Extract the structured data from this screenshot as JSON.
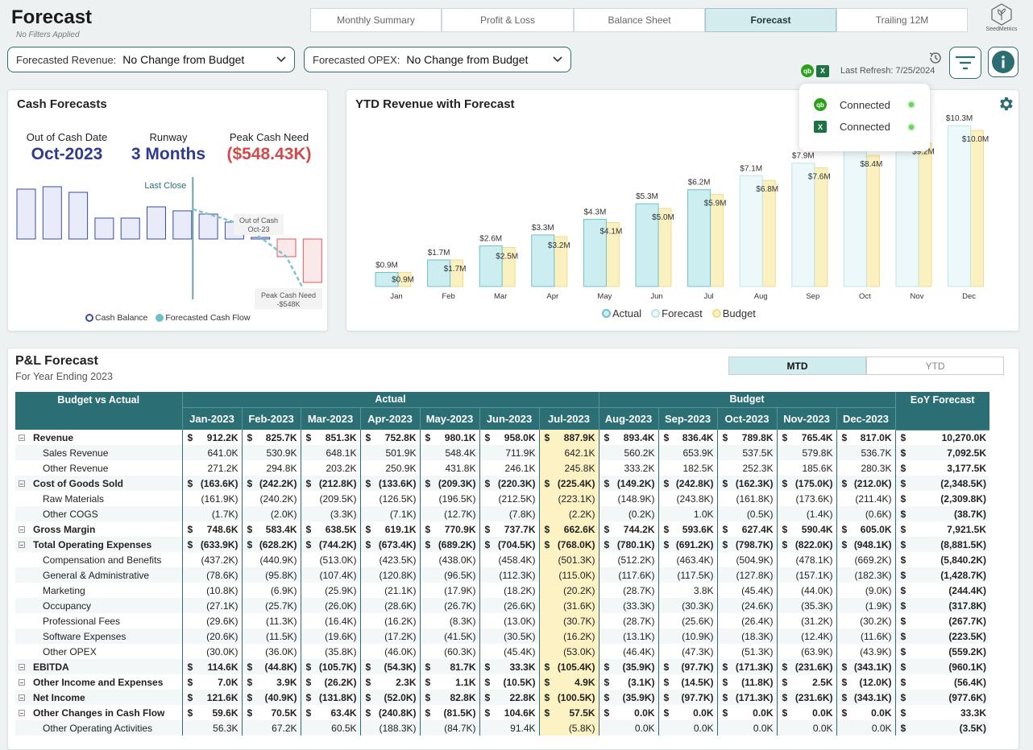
{
  "header": {
    "title": "Forecast",
    "filters_note": "No Filters Applied",
    "tabs": [
      "Monthly Summary",
      "Profit & Loss",
      "Balance Sheet",
      "Forecast",
      "Trailing 12M"
    ],
    "active_tab": "Forecast",
    "logo_text": "SeedMetrics",
    "last_refresh": "Last Refresh: 7/25/2024"
  },
  "filters": {
    "revenue_label": "Forecasted Revenue:",
    "revenue_value": "No Change from Budget",
    "opex_label": "Forecasted OPEX:",
    "opex_value": "No Change from Budget"
  },
  "connections": {
    "quickbooks": "Connected",
    "excel": "Connected"
  },
  "cash_forecasts": {
    "title": "Cash Forecasts",
    "kpis": [
      {
        "label": "Out of Cash Date",
        "value": "Oct-2023",
        "color": "#2e3b8f"
      },
      {
        "label": "Runway",
        "value": "3 Months",
        "color": "#2e3b8f"
      },
      {
        "label": "Peak Cash Need",
        "value": "($548.43K)",
        "color": "#d04c4c"
      }
    ],
    "annotations": {
      "last_close": "Last Close",
      "out_of_cash_1": "Out of Cash",
      "out_of_cash_2": "Oct-23",
      "peak_1": "Peak Cash Need",
      "peak_2": "-$548K"
    },
    "legend": [
      "Cash Balance",
      "Forecasted Cash Flow"
    ],
    "chart_data": {
      "type": "bar",
      "categories": [
        "Jan",
        "Feb",
        "Mar",
        "Apr",
        "May",
        "Jun",
        "Jul",
        "Aug",
        "Sep",
        "Oct",
        "Nov",
        "Dec"
      ],
      "values": [
        62,
        65,
        58,
        26,
        26,
        40,
        35,
        31,
        21,
        2,
        -22,
        -54
      ],
      "ylim": [
        -60,
        75
      ],
      "last_close_index": 6
    }
  },
  "ytd_revenue": {
    "title": "YTD Revenue with Forecast",
    "legend": [
      "Actual",
      "Forecast",
      "Budget"
    ],
    "chart_data": {
      "type": "bar",
      "categories": [
        "Jan",
        "Feb",
        "Mar",
        "Apr",
        "May",
        "Jun",
        "Jul",
        "Aug",
        "Sep",
        "Oct",
        "Nov",
        "Dec"
      ],
      "series": [
        {
          "name": "Actual",
          "values": [
            0.9,
            1.7,
            2.6,
            3.3,
            4.3,
            5.3,
            6.2,
            null,
            null,
            null,
            null,
            null
          ]
        },
        {
          "name": "Forecast",
          "values": [
            null,
            null,
            null,
            null,
            null,
            null,
            null,
            7.1,
            7.9,
            8.7,
            9.5,
            10.3
          ]
        },
        {
          "name": "Budget",
          "values": [
            0.9,
            1.7,
            2.5,
            3.2,
            4.1,
            5.0,
            5.9,
            6.8,
            7.6,
            8.4,
            9.2,
            10.0
          ]
        }
      ],
      "labels_top": [
        "$0.9M",
        "$1.7M",
        "$2.6M",
        "$3.3M",
        "$4.3M",
        "$5.3M",
        "$6.2M",
        "$7.1M",
        "$7.9M",
        "",
        "",
        "$10.3M"
      ],
      "labels_budget": [
        "$0.9M",
        "$1.7M",
        "$2.5M",
        "$3.2M",
        "$4.1M",
        "$5.0M",
        "$5.9M",
        "$6.8M",
        "$7.6M",
        "$8.4M",
        "$9.2M",
        "$10.0M"
      ],
      "ylim": [
        0,
        11
      ]
    }
  },
  "pl": {
    "title": "P&L Forecast",
    "subtitle": "For Year Ending 2023",
    "toggle": [
      "MTD",
      "YTD"
    ],
    "header_group": [
      "Budget vs Actual",
      "Actual",
      "Budget",
      "EoY Forecast"
    ],
    "months": [
      "Jan-2023",
      "Feb-2023",
      "Mar-2023",
      "Apr-2023",
      "May-2023",
      "Jun-2023",
      "Jul-2023",
      "Aug-2023",
      "Sep-2023",
      "Oct-2023",
      "Nov-2023",
      "Dec-2023"
    ],
    "rows": [
      {
        "label": "Revenue",
        "level": 0,
        "bold": true,
        "cur": true,
        "vals": [
          "912.2K",
          "825.7K",
          "851.3K",
          "752.8K",
          "980.1K",
          "958.0K",
          "887.9K",
          "893.4K",
          "836.4K",
          "789.8K",
          "765.4K",
          "817.0K"
        ],
        "eoy": "10,270.0K"
      },
      {
        "label": "Sales Revenue",
        "level": 1,
        "vals": [
          "641.0K",
          "530.9K",
          "648.1K",
          "501.9K",
          "548.4K",
          "711.9K",
          "642.1K",
          "560.2K",
          "653.9K",
          "537.5K",
          "579.8K",
          "536.7K"
        ],
        "eoy": "7,092.5K"
      },
      {
        "label": "Other Revenue",
        "level": 1,
        "vals": [
          "271.2K",
          "294.8K",
          "203.2K",
          "250.9K",
          "431.8K",
          "246.1K",
          "245.8K",
          "333.2K",
          "182.5K",
          "252.3K",
          "185.6K",
          "280.3K"
        ],
        "eoy": "3,177.5K"
      },
      {
        "label": "Cost of Goods Sold",
        "level": 0,
        "bold": true,
        "cur": true,
        "vals": [
          "(163.6K)",
          "(242.2K)",
          "(212.8K)",
          "(133.6K)",
          "(209.3K)",
          "(220.3K)",
          "(225.4K)",
          "(149.2K)",
          "(242.8K)",
          "(162.3K)",
          "(175.0K)",
          "(212.0K)"
        ],
        "eoy": "(2,348.5K)"
      },
      {
        "label": "Raw Materials",
        "level": 1,
        "vals": [
          "(161.9K)",
          "(240.2K)",
          "(209.5K)",
          "(126.5K)",
          "(196.5K)",
          "(212.5K)",
          "(223.1K)",
          "(148.9K)",
          "(243.8K)",
          "(161.8K)",
          "(173.6K)",
          "(211.4K)"
        ],
        "eoy": "(2,309.8K)"
      },
      {
        "label": "Other COGS",
        "level": 1,
        "vals": [
          "(1.7K)",
          "(2.0K)",
          "(3.3K)",
          "(7.1K)",
          "(12.7K)",
          "(7.8K)",
          "(2.2K)",
          "(0.2K)",
          "1.0K",
          "(0.5K)",
          "(1.4K)",
          "(0.6K)"
        ],
        "eoy": "(38.7K)"
      },
      {
        "label": "Gross Margin",
        "level": 0,
        "bold": true,
        "cur": true,
        "vals": [
          "748.6K",
          "583.4K",
          "638.5K",
          "619.1K",
          "770.9K",
          "737.7K",
          "662.6K",
          "744.2K",
          "593.6K",
          "627.4K",
          "590.4K",
          "605.0K"
        ],
        "eoy": "7,921.5K"
      },
      {
        "label": "Total Operating Expenses",
        "level": 0,
        "bold": true,
        "cur": true,
        "vals": [
          "(633.9K)",
          "(628.2K)",
          "(744.2K)",
          "(673.4K)",
          "(689.2K)",
          "(704.5K)",
          "(768.0K)",
          "(780.1K)",
          "(691.2K)",
          "(798.7K)",
          "(822.0K)",
          "(948.1K)"
        ],
        "eoy": "(8,881.5K)"
      },
      {
        "label": "Compensation and Benefits",
        "level": 1,
        "vals": [
          "(437.2K)",
          "(440.9K)",
          "(513.0K)",
          "(423.5K)",
          "(438.0K)",
          "(458.4K)",
          "(501.3K)",
          "(512.2K)",
          "(463.4K)",
          "(504.9K)",
          "(478.1K)",
          "(669.2K)"
        ],
        "eoy": "(5,840.2K)"
      },
      {
        "label": "General & Administrative",
        "level": 1,
        "vals": [
          "(78.6K)",
          "(95.8K)",
          "(107.4K)",
          "(120.8K)",
          "(96.5K)",
          "(112.3K)",
          "(115.0K)",
          "(117.6K)",
          "(117.5K)",
          "(127.8K)",
          "(157.1K)",
          "(182.3K)"
        ],
        "eoy": "(1,428.7K)"
      },
      {
        "label": "Marketing",
        "level": 1,
        "vals": [
          "(10.8K)",
          "(6.9K)",
          "(25.9K)",
          "(21.1K)",
          "(17.9K)",
          "(18.2K)",
          "(20.2K)",
          "(28.7K)",
          "3.8K",
          "(45.4K)",
          "(44.0K)",
          "(9.0K)"
        ],
        "eoy": "(244.4K)"
      },
      {
        "label": "Occupancy",
        "level": 1,
        "vals": [
          "(27.1K)",
          "(25.7K)",
          "(26.0K)",
          "(28.6K)",
          "(26.7K)",
          "(26.6K)",
          "(31.6K)",
          "(33.3K)",
          "(30.3K)",
          "(24.6K)",
          "(35.3K)",
          "(1.9K)"
        ],
        "eoy": "(317.8K)"
      },
      {
        "label": "Professional Fees",
        "level": 1,
        "vals": [
          "(29.6K)",
          "(11.3K)",
          "(16.4K)",
          "(16.2K)",
          "(8.3K)",
          "(13.0K)",
          "(30.7K)",
          "(28.7K)",
          "(25.6K)",
          "(26.4K)",
          "(31.2K)",
          "(30.2K)"
        ],
        "eoy": "(267.7K)"
      },
      {
        "label": "Software Expenses",
        "level": 1,
        "vals": [
          "(20.6K)",
          "(11.5K)",
          "(19.6K)",
          "(17.2K)",
          "(41.5K)",
          "(30.5K)",
          "(16.2K)",
          "(13.1K)",
          "(10.9K)",
          "(18.3K)",
          "(12.4K)",
          "(11.6K)"
        ],
        "eoy": "(223.5K)"
      },
      {
        "label": "Other OPEX",
        "level": 1,
        "vals": [
          "(30.0K)",
          "(36.0K)",
          "(35.8K)",
          "(46.0K)",
          "(60.3K)",
          "(45.4K)",
          "(53.0K)",
          "(46.4K)",
          "(47.3K)",
          "(51.3K)",
          "(63.9K)",
          "(43.9K)"
        ],
        "eoy": "(559.2K)"
      },
      {
        "label": "EBITDA",
        "level": 0,
        "bold": true,
        "cur": true,
        "vals": [
          "114.6K",
          "(44.8K)",
          "(105.7K)",
          "(54.3K)",
          "81.7K",
          "33.3K",
          "(105.4K)",
          "(35.9K)",
          "(97.7K)",
          "(171.3K)",
          "(231.6K)",
          "(343.1K)"
        ],
        "eoy": "(960.1K)"
      },
      {
        "label": "Other Income and Expenses",
        "level": 0,
        "bold": true,
        "cur": true,
        "vals": [
          "7.0K",
          "3.9K",
          "(26.2K)",
          "2.3K",
          "1.1K",
          "(10.5K)",
          "4.9K",
          "(3.1K)",
          "(14.5K)",
          "(11.8K)",
          "2.5K",
          "(12.0K)"
        ],
        "eoy": "(56.4K)"
      },
      {
        "label": "Net Income",
        "level": 0,
        "bold": true,
        "cur": true,
        "vals": [
          "121.6K",
          "(40.9K)",
          "(131.8K)",
          "(52.0K)",
          "82.8K",
          "22.8K",
          "(100.5K)",
          "(35.9K)",
          "(97.7K)",
          "(171.3K)",
          "(231.6K)",
          "(343.1K)"
        ],
        "eoy": "(977.6K)"
      },
      {
        "label": "Other Changes in Cash Flow",
        "level": 0,
        "bold": true,
        "cur": true,
        "vals": [
          "59.6K",
          "70.5K",
          "63.4K",
          "(240.8K)",
          "(81.5K)",
          "104.6K",
          "57.5K",
          "0.0K",
          "0.0K",
          "0.0K",
          "0.0K",
          "0.0K"
        ],
        "eoy": "33.3K"
      },
      {
        "label": "Other Operating Activities",
        "level": 1,
        "vals": [
          "56.3K",
          "67.2K",
          "60.5K",
          "(188.3K)",
          "(84.7K)",
          "91.4K",
          "(5.8K)",
          "0.0K",
          "0.0K",
          "0.0K",
          "0.0K",
          "0.0K"
        ],
        "eoy": "(3.5K)"
      }
    ]
  }
}
